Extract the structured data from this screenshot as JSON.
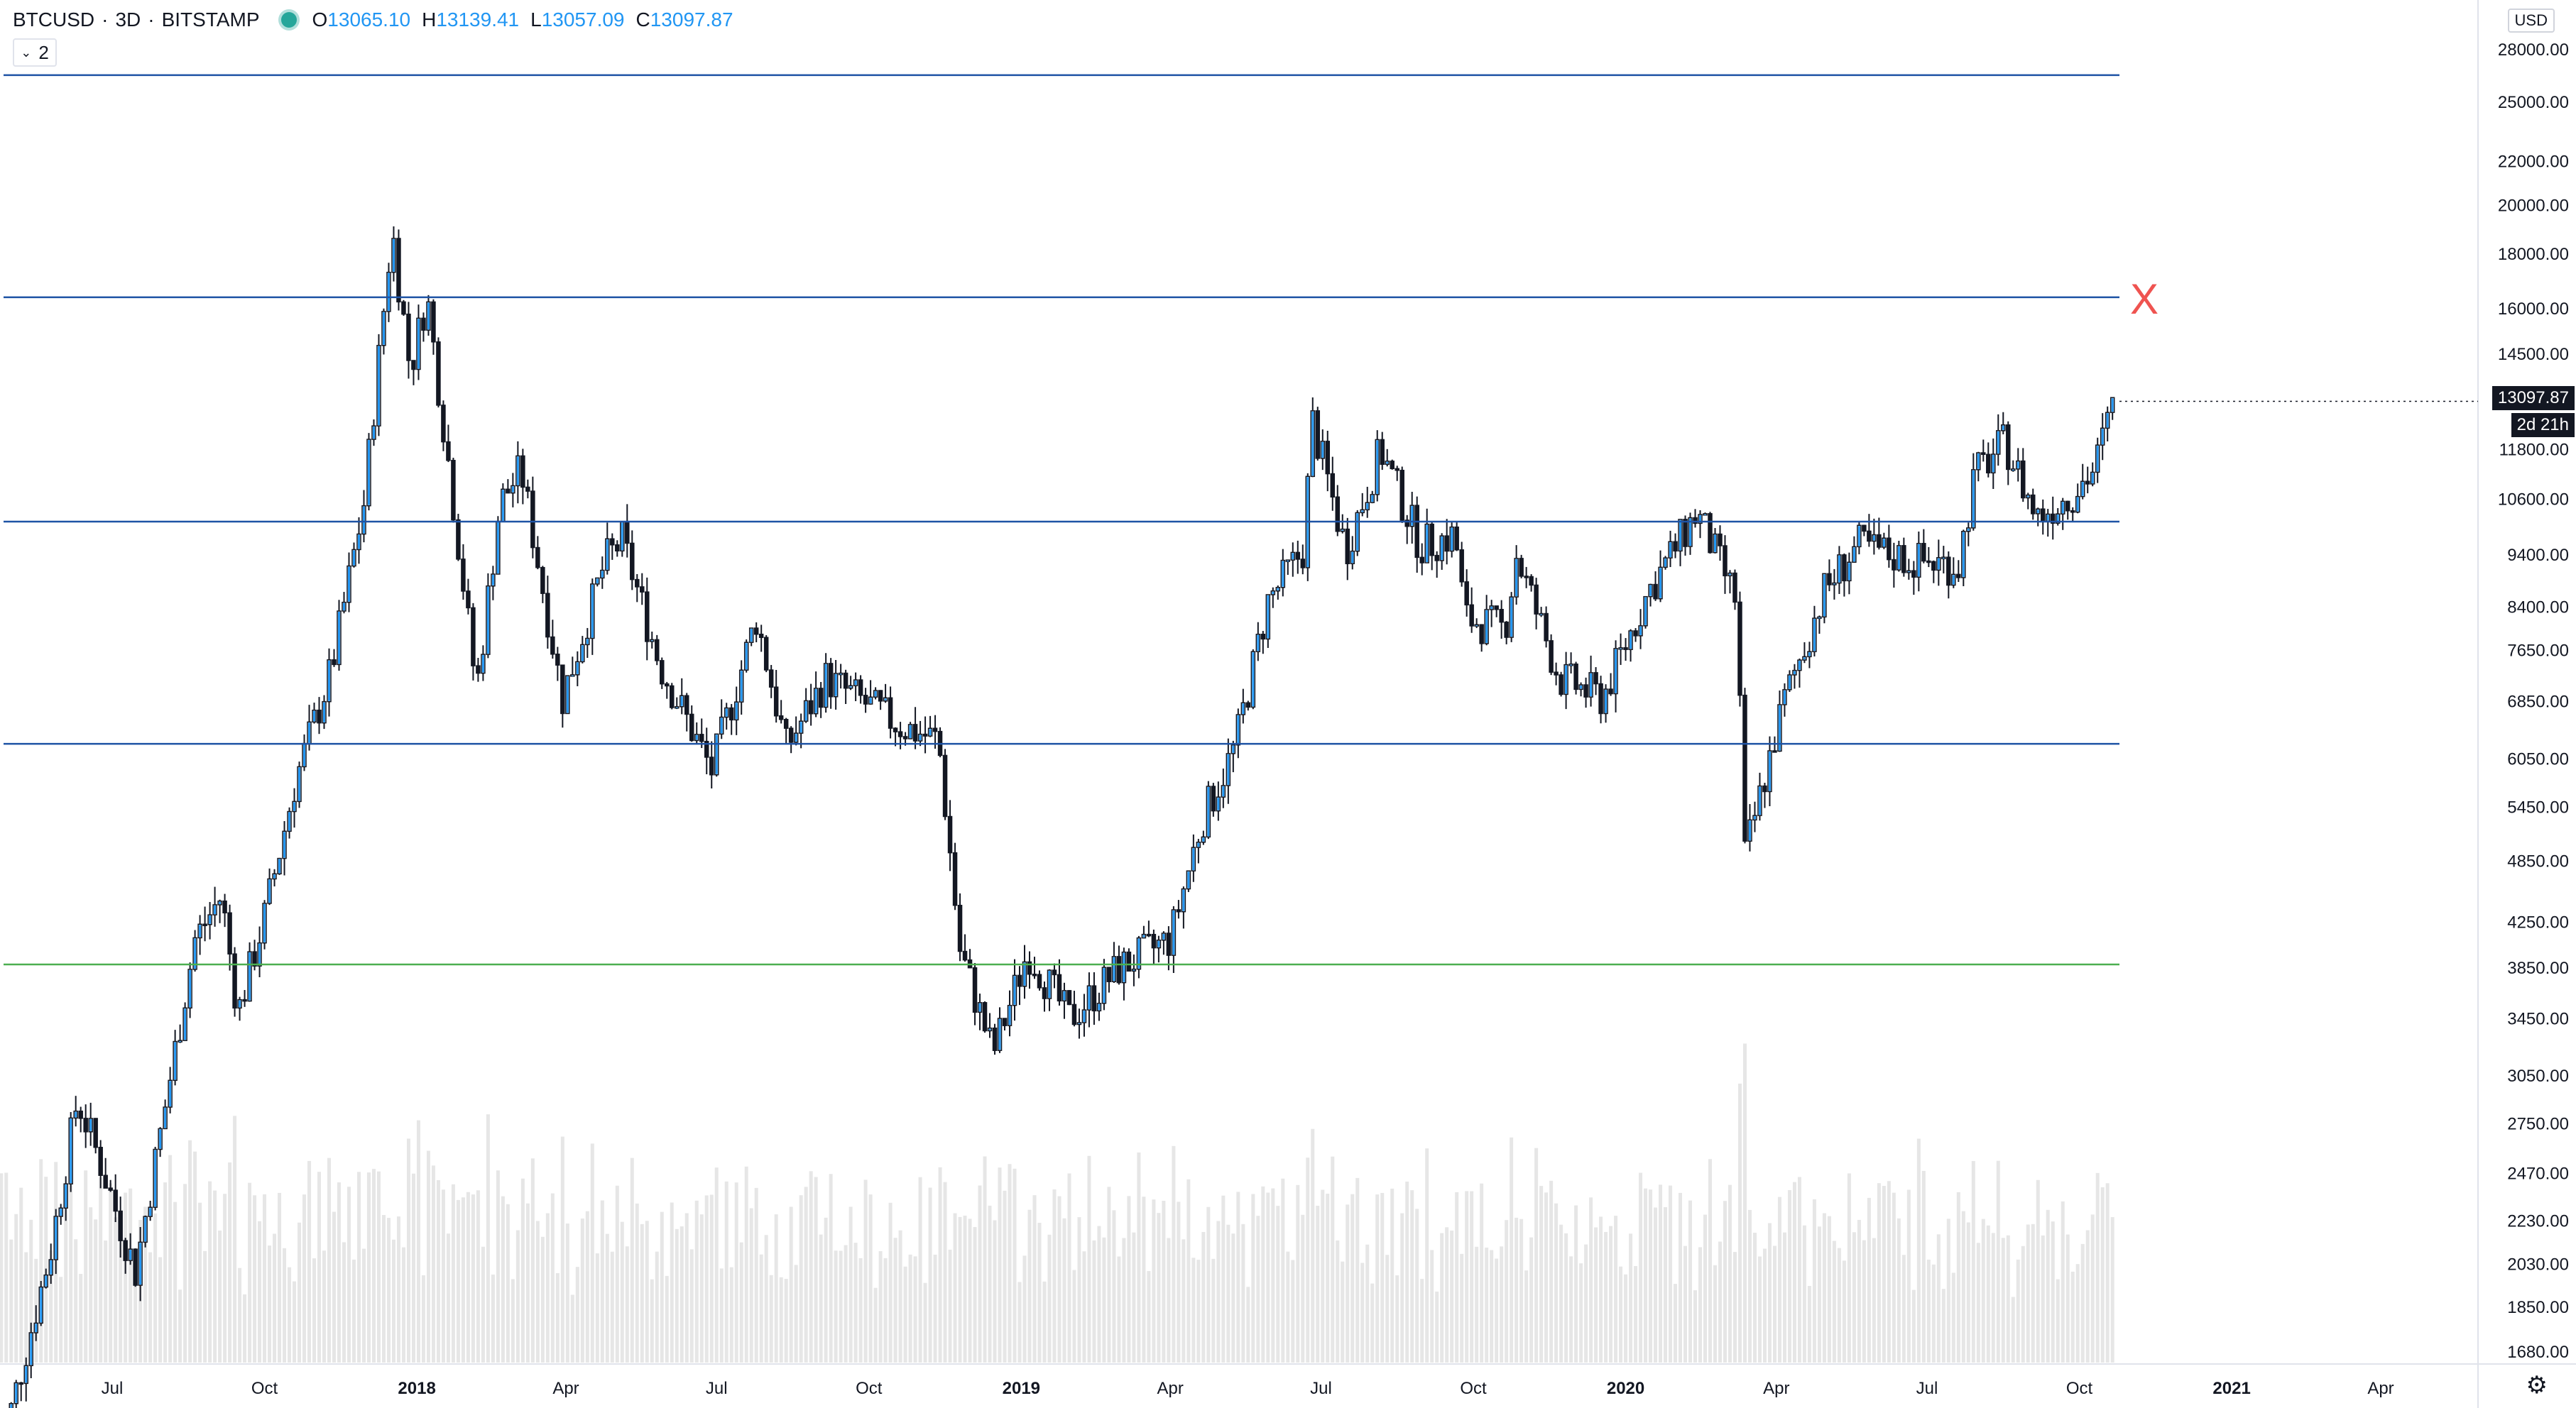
{
  "legend": {
    "symbol": "BTCUSD",
    "interval": "3D",
    "exchange": "BITSTAMP",
    "open_label": "O",
    "open": "13065.10",
    "high_label": "H",
    "high": "13139.41",
    "low_label": "L",
    "low": "13057.09",
    "close_label": "C",
    "close": "13097.87",
    "separator": "·"
  },
  "counter": {
    "value": "2"
  },
  "currency": "USD",
  "price_badge": "13097.87",
  "timer_badge": "2d 21h",
  "annotation_mark": "X",
  "colors": {
    "up": "#2196f3",
    "down": "#131722",
    "hline": "#1e53a5",
    "hline_support": "#4caf50",
    "volume": "#e6e6e6"
  },
  "chart_data": {
    "type": "candlestick",
    "title": "",
    "scale": "log",
    "ylim": [
      1600,
      31000
    ],
    "y_ticks": [
      "28000.00",
      "25000.00",
      "22000.00",
      "20000.00",
      "18000.00",
      "16000.00",
      "14500.00",
      "11800.00",
      "10600.00",
      "9400.00",
      "8400.00",
      "7650.00",
      "6850.00",
      "6050.00",
      "5450.00",
      "4850.00",
      "4250.00",
      "3850.00",
      "3450.00",
      "3050.00",
      "2750.00",
      "2470.00",
      "2230.00",
      "2030.00",
      "1850.00",
      "1680.00"
    ],
    "x_ticks": [
      {
        "label": "Jul",
        "date": "2017-07-01",
        "bold": false
      },
      {
        "label": "Oct",
        "date": "2017-10-01",
        "bold": false
      },
      {
        "label": "2018",
        "date": "2018-01-01",
        "bold": true
      },
      {
        "label": "Apr",
        "date": "2018-04-01",
        "bold": false
      },
      {
        "label": "Jul",
        "date": "2018-07-01",
        "bold": false
      },
      {
        "label": "Oct",
        "date": "2018-10-01",
        "bold": false
      },
      {
        "label": "2019",
        "date": "2019-01-01",
        "bold": true
      },
      {
        "label": "Apr",
        "date": "2019-04-01",
        "bold": false
      },
      {
        "label": "Jul",
        "date": "2019-07-01",
        "bold": false
      },
      {
        "label": "Oct",
        "date": "2019-10-01",
        "bold": false
      },
      {
        "label": "2020",
        "date": "2020-01-01",
        "bold": true
      },
      {
        "label": "Apr",
        "date": "2020-04-01",
        "bold": false
      },
      {
        "label": "Jul",
        "date": "2020-07-01",
        "bold": false
      },
      {
        "label": "Oct",
        "date": "2020-10-01",
        "bold": false
      },
      {
        "label": "2021",
        "date": "2021-01-01",
        "bold": true
      },
      {
        "label": "Apr",
        "date": "2021-04-01",
        "bold": false
      }
    ],
    "horizontal_lines": [
      {
        "price": 26500,
        "color": "#1e53a5"
      },
      {
        "price": 16400,
        "color": "#1e53a5"
      },
      {
        "price": 10100,
        "color": "#1e53a5"
      },
      {
        "price": 6250,
        "color": "#1e53a5"
      },
      {
        "price": 3880,
        "color": "#4caf50"
      }
    ],
    "close_path": [
      {
        "date": "2017-04-22",
        "close": 1300
      },
      {
        "date": "2017-05-25",
        "close": 2100
      },
      {
        "date": "2017-06-10",
        "close": 2900
      },
      {
        "date": "2017-06-25",
        "close": 2500
      },
      {
        "date": "2017-07-15",
        "close": 2000
      },
      {
        "date": "2017-08-01",
        "close": 2800
      },
      {
        "date": "2017-08-20",
        "close": 4100
      },
      {
        "date": "2017-09-05",
        "close": 4500
      },
      {
        "date": "2017-09-15",
        "close": 3500
      },
      {
        "date": "2017-10-01",
        "close": 4300
      },
      {
        "date": "2017-10-20",
        "close": 5800
      },
      {
        "date": "2017-11-10",
        "close": 7300
      },
      {
        "date": "2017-11-30",
        "close": 10500
      },
      {
        "date": "2017-12-17",
        "close": 19000
      },
      {
        "date": "2017-12-28",
        "close": 14000
      },
      {
        "date": "2018-01-07",
        "close": 16500
      },
      {
        "date": "2018-01-20",
        "close": 11500
      },
      {
        "date": "2018-02-06",
        "close": 7000
      },
      {
        "date": "2018-02-20",
        "close": 10500
      },
      {
        "date": "2018-03-05",
        "close": 11300
      },
      {
        "date": "2018-03-30",
        "close": 6900
      },
      {
        "date": "2018-04-25",
        "close": 9300
      },
      {
        "date": "2018-05-05",
        "close": 9700
      },
      {
        "date": "2018-05-28",
        "close": 7400
      },
      {
        "date": "2018-06-28",
        "close": 5900
      },
      {
        "date": "2018-07-25",
        "close": 8200
      },
      {
        "date": "2018-08-12",
        "close": 6200
      },
      {
        "date": "2018-09-05",
        "close": 7200
      },
      {
        "date": "2018-10-20",
        "close": 6500
      },
      {
        "date": "2018-11-12",
        "close": 6300
      },
      {
        "date": "2018-11-25",
        "close": 4000
      },
      {
        "date": "2018-12-15",
        "close": 3200
      },
      {
        "date": "2019-01-05",
        "close": 4000
      },
      {
        "date": "2019-01-30",
        "close": 3450
      },
      {
        "date": "2019-03-01",
        "close": 3850
      },
      {
        "date": "2019-04-01",
        "close": 4100
      },
      {
        "date": "2019-04-20",
        "close": 5300
      },
      {
        "date": "2019-05-10",
        "close": 6200
      },
      {
        "date": "2019-05-30",
        "close": 8500
      },
      {
        "date": "2019-06-20",
        "close": 9500
      },
      {
        "date": "2019-06-26",
        "close": 12500
      },
      {
        "date": "2019-07-16",
        "close": 9500
      },
      {
        "date": "2019-08-06",
        "close": 11800
      },
      {
        "date": "2019-08-30",
        "close": 9600
      },
      {
        "date": "2019-09-20",
        "close": 9800
      },
      {
        "date": "2019-09-26",
        "close": 8200
      },
      {
        "date": "2019-10-20",
        "close": 8000
      },
      {
        "date": "2019-10-27",
        "close": 9400
      },
      {
        "date": "2019-11-22",
        "close": 7200
      },
      {
        "date": "2019-12-18",
        "close": 6900
      },
      {
        "date": "2020-01-15",
        "close": 8700
      },
      {
        "date": "2020-02-13",
        "close": 10300
      },
      {
        "date": "2020-03-08",
        "close": 8500
      },
      {
        "date": "2020-03-13",
        "close": 4900
      },
      {
        "date": "2020-04-05",
        "close": 6800
      },
      {
        "date": "2020-04-30",
        "close": 8700
      },
      {
        "date": "2020-05-20",
        "close": 9600
      },
      {
        "date": "2020-06-20",
        "close": 9300
      },
      {
        "date": "2020-07-20",
        "close": 9200
      },
      {
        "date": "2020-07-30",
        "close": 11200
      },
      {
        "date": "2020-08-17",
        "close": 12000
      },
      {
        "date": "2020-09-05",
        "close": 10200
      },
      {
        "date": "2020-09-25",
        "close": 10700
      },
      {
        "date": "2020-10-10",
        "close": 11300
      },
      {
        "date": "2020-10-20",
        "close": 12800
      },
      {
        "date": "2020-10-23",
        "close": 13097.87
      }
    ],
    "volume_note": "volume bars shown as light histogram at bottom"
  }
}
